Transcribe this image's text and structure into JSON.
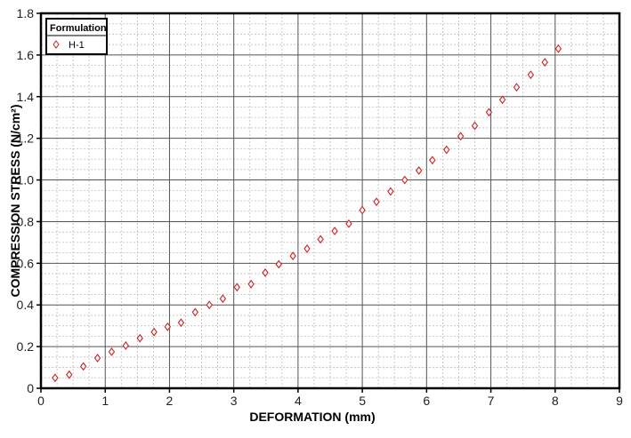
{
  "chart_data": {
    "type": "scatter",
    "title": "",
    "xlabel": "DEFORMATION (mm)",
    "ylabel": "COMPRESSION STRESS (N/cm²)",
    "xlim": [
      0,
      9
    ],
    "ylim": [
      0,
      1.8
    ],
    "xticks": [
      "0",
      "1",
      "2",
      "3",
      "4",
      "5",
      "6",
      "7",
      "8",
      "9"
    ],
    "yticks": [
      "0",
      "0.2",
      "0.4",
      "0.6",
      "0.8",
      "1.0",
      "1.2",
      "1.4",
      "1.6",
      "1.8"
    ],
    "grid": true,
    "legend": {
      "title": "Formulation",
      "placement": "top-left",
      "entries": [
        "H-1"
      ]
    },
    "series": [
      {
        "name": "H-1",
        "marker": "diamond",
        "color": "#cc2222",
        "x": [
          0.22,
          0.44,
          0.66,
          0.88,
          1.1,
          1.32,
          1.54,
          1.76,
          1.97,
          2.18,
          2.4,
          2.62,
          2.83,
          3.05,
          3.27,
          3.49,
          3.7,
          3.92,
          4.14,
          4.35,
          4.57,
          4.79,
          5.0,
          5.22,
          5.44,
          5.66,
          5.88,
          6.09,
          6.31,
          6.53,
          6.75,
          6.97,
          7.18,
          7.4,
          7.62,
          7.84,
          8.05
        ],
        "y": [
          0.05,
          0.065,
          0.105,
          0.145,
          0.175,
          0.205,
          0.24,
          0.27,
          0.295,
          0.315,
          0.365,
          0.4,
          0.43,
          0.485,
          0.5,
          0.555,
          0.595,
          0.635,
          0.67,
          0.715,
          0.755,
          0.79,
          0.855,
          0.895,
          0.945,
          1.0,
          1.045,
          1.095,
          1.145,
          1.21,
          1.26,
          1.325,
          1.385,
          1.445,
          1.505,
          1.565,
          1.63
        ]
      }
    ]
  }
}
